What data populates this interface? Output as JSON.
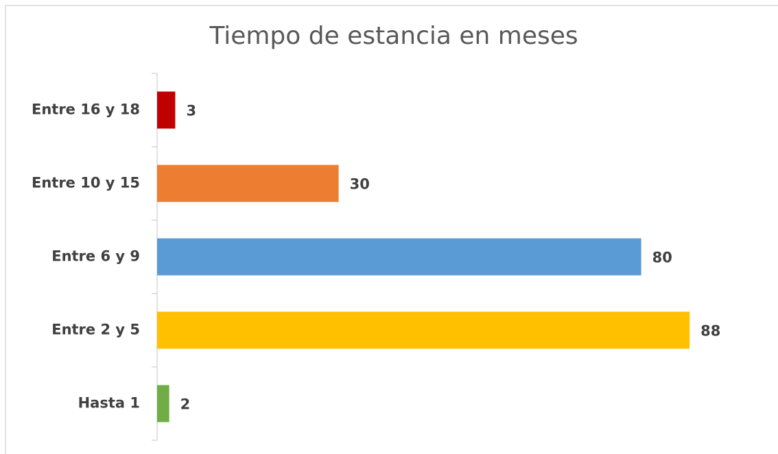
{
  "chart_data": {
    "type": "barh",
    "title": "Tiempo de estancia en meses",
    "categories": [
      "Entre 16 y 18",
      "Entre 10 y 15",
      "Entre 6 y 9",
      "Entre 2 y 5",
      "Hasta 1"
    ],
    "values": [
      3,
      30,
      80,
      88,
      2
    ],
    "colors": [
      "#c00000",
      "#ed7d31",
      "#5b9bd5",
      "#ffc000",
      "#70ad47"
    ],
    "xlim": [
      0,
      100
    ]
  }
}
